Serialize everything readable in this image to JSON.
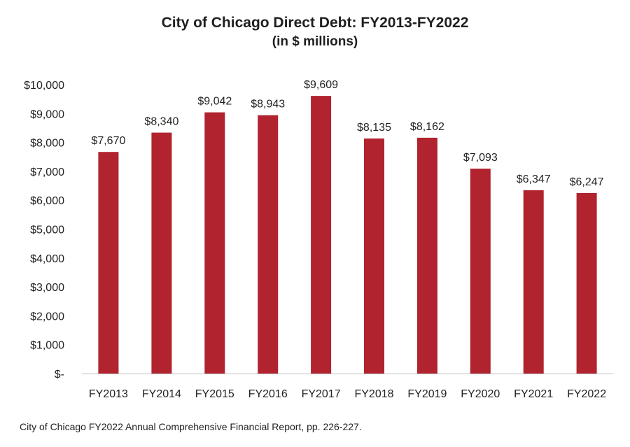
{
  "chart_data": {
    "type": "bar",
    "title": "City of Chicago Direct Debt: FY2013-FY2022",
    "subtitle": "(in $ millions)",
    "xlabel": "",
    "ylabel": "",
    "categories": [
      "FY2013",
      "FY2014",
      "FY2015",
      "FY2016",
      "FY2017",
      "FY2018",
      "FY2019",
      "FY2020",
      "FY2021",
      "FY2022"
    ],
    "values": [
      7670,
      8340,
      9042,
      8943,
      9609,
      8135,
      8162,
      7093,
      6347,
      6247
    ],
    "value_labels": [
      "$7,670",
      "$8,340",
      "$9,042",
      "$8,943",
      "$9,609",
      "$8,135",
      "$8,162",
      "$7,093",
      "$6,347",
      "$6,247"
    ],
    "ylim": [
      0,
      10000
    ],
    "y_ticks": [
      0,
      1000,
      2000,
      3000,
      4000,
      5000,
      6000,
      7000,
      8000,
      9000,
      10000
    ],
    "y_tick_labels": [
      "$-",
      "$1,000",
      "$2,000",
      "$3,000",
      "$4,000",
      "$5,000",
      "$6,000",
      "$7,000",
      "$8,000",
      "$9,000",
      "$10,000"
    ],
    "grid": false,
    "legend": "none",
    "bar_color": "#b0232f",
    "axis_color": "#bfbfbf"
  },
  "source_note": "City of Chicago FY2022 Annual Comprehensive Financial Report, pp. 226-227."
}
